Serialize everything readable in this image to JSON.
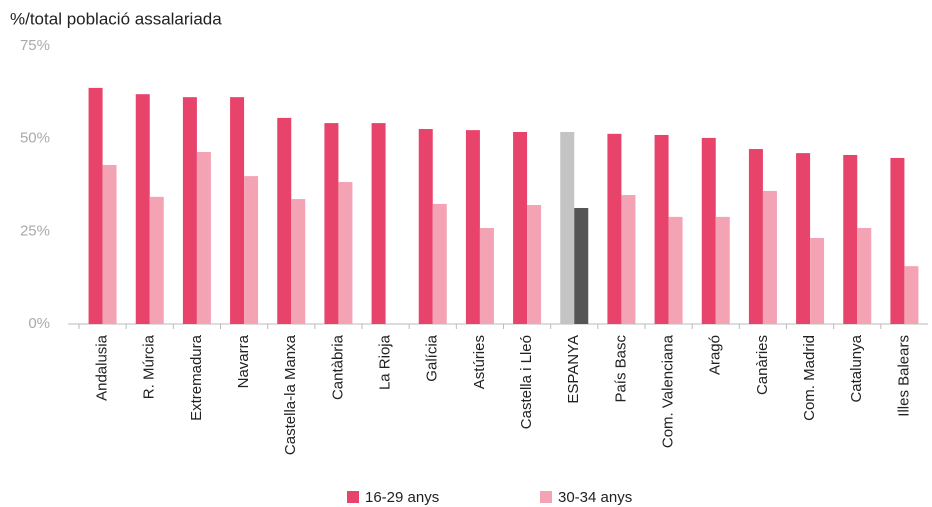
{
  "chart_data": {
    "type": "bar",
    "title": "%/total població assalariada",
    "categories": [
      "Andalusia",
      "R. Múrcia",
      "Extremadura",
      "Navarra",
      "Castella-la Manxa",
      "Cantàbria",
      "La Rioja",
      "Galícia",
      "Astúries",
      "Castella i Lleó",
      "ESPANYA",
      "País Basc",
      "Com. Valenciana",
      "Aragó",
      "Canàries",
      "Com. Madrid",
      "Catalunya",
      "Illes Balears"
    ],
    "series": [
      {
        "name": "16-29 anys",
        "color": "#e8436a",
        "colors": [
          "#e8436a",
          "#e8436a",
          "#e8436a",
          "#e8436a",
          "#e8436a",
          "#e8436a",
          "#e8436a",
          "#e8436a",
          "#e8436a",
          "#e8436a",
          "#c4c4c4",
          "#e8436a",
          "#e8436a",
          "#e8436a",
          "#e8436a",
          "#e8436a",
          "#e8436a",
          "#e8436a"
        ],
        "values": [
          63.7,
          62,
          61.2,
          61.2,
          55.6,
          54.2,
          54.2,
          52.6,
          52.3,
          51.8,
          51.8,
          51.3,
          51,
          50.2,
          47.2,
          46.1,
          45.6,
          44.8
        ]
      },
      {
        "name": "30-34 anys",
        "color": "#f4a3b4",
        "colors": [
          "#f4a3b4",
          "#f4a3b4",
          "#f4a3b4",
          "#f4a3b4",
          "#f4a3b4",
          "#f4a3b4",
          "#f4a3b4",
          "#f4a3b4",
          "#f4a3b4",
          "#f4a3b4",
          "#555555",
          "#f4a3b4",
          "#f4a3b4",
          "#f4a3b4",
          "#f4a3b4",
          "#f4a3b4",
          "#f4a3b4",
          "#f4a3b4"
        ],
        "values": [
          42.9,
          34.3,
          46.4,
          39.9,
          33.7,
          38.3,
          null,
          32.4,
          25.9,
          32.1,
          31.3,
          34.8,
          28.9,
          28.9,
          35.9,
          23.2,
          25.9,
          15.6
        ]
      }
    ],
    "ylim": [
      0,
      75
    ],
    "yticks": [
      {
        "value": 0,
        "label": "0%"
      },
      {
        "value": 25,
        "label": "25%"
      },
      {
        "value": 50,
        "label": "50%"
      },
      {
        "value": 75,
        "label": "75%"
      }
    ],
    "grid": false
  }
}
